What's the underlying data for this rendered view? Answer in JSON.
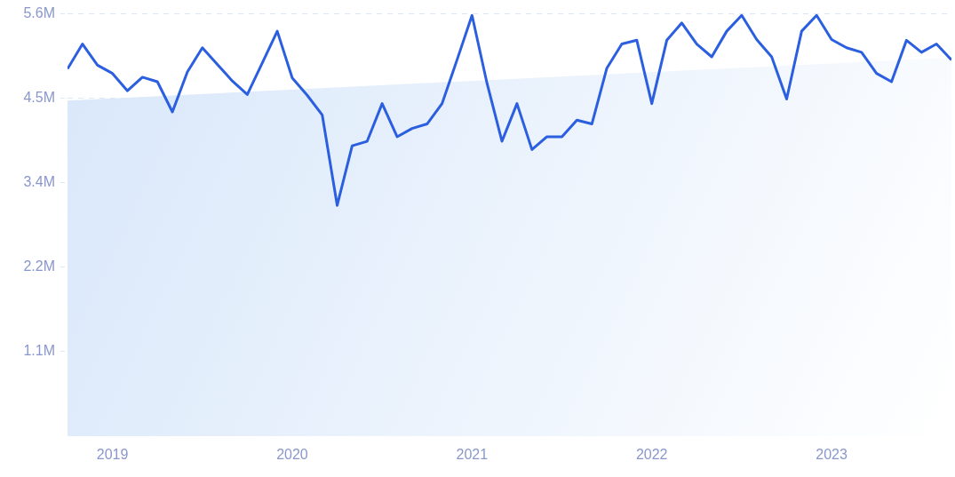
{
  "chart_data": {
    "type": "line",
    "x": [
      "2018-10",
      "2018-11",
      "2018-12",
      "2019-01",
      "2019-02",
      "2019-03",
      "2019-04",
      "2019-05",
      "2019-06",
      "2019-07",
      "2019-08",
      "2019-09",
      "2019-10",
      "2019-11",
      "2019-12",
      "2020-01",
      "2020-02",
      "2020-03",
      "2020-04",
      "2020-05",
      "2020-06",
      "2020-07",
      "2020-08",
      "2020-09",
      "2020-10",
      "2020-11",
      "2020-12",
      "2021-01",
      "2021-02",
      "2021-03",
      "2021-04",
      "2021-05",
      "2021-06",
      "2021-07",
      "2021-08",
      "2021-09",
      "2021-10",
      "2021-11",
      "2021-12",
      "2022-01",
      "2022-02",
      "2022-03",
      "2022-04",
      "2022-05",
      "2022-06",
      "2022-07",
      "2022-08",
      "2022-09",
      "2022-10",
      "2022-11",
      "2022-12",
      "2023-01",
      "2023-02",
      "2023-03",
      "2023-04",
      "2023-05",
      "2023-06",
      "2023-07",
      "2023-08",
      "2023-09"
    ],
    "series": [
      {
        "type": "area",
        "color": "#d8e7fa",
        "x": [
          "2018-10",
          "2023-09"
        ],
        "values": [
          4.45,
          5.02
        ]
      },
      {
        "type": "line",
        "color": "#2b5fe0",
        "values": [
          4.87,
          5.2,
          4.92,
          4.81,
          4.58,
          4.76,
          4.7,
          4.3,
          4.83,
          5.15,
          4.93,
          4.71,
          4.53,
          4.95,
          5.37,
          4.75,
          4.52,
          4.26,
          3.06,
          3.85,
          3.91,
          4.41,
          3.97,
          4.08,
          4.14,
          4.41,
          4.99,
          5.58,
          4.68,
          3.91,
          4.41,
          3.8,
          3.97,
          3.97,
          4.19,
          4.14,
          4.88,
          5.2,
          5.25,
          4.41,
          5.25,
          5.48,
          5.2,
          5.03,
          5.37,
          5.58,
          5.26,
          5.03,
          4.47,
          5.37,
          5.58,
          5.26,
          5.15,
          5.09,
          4.81,
          4.7,
          5.25,
          5.09,
          5.2,
          4.99
        ]
      }
    ],
    "xlim": [
      "2018-10",
      "2023-09"
    ],
    "xticks": [
      "2019",
      "2020",
      "2021",
      "2022",
      "2023"
    ],
    "ylim": [
      0,
      5.6
    ],
    "yticks": [
      {
        "value": 1.12,
        "label": "1.1M"
      },
      {
        "value": 2.24,
        "label": "2.2M"
      },
      {
        "value": 3.36,
        "label": "3.4M"
      },
      {
        "value": 4.48,
        "label": "4.5M"
      },
      {
        "value": 5.6,
        "label": "5.6M"
      }
    ],
    "grid": "y"
  }
}
